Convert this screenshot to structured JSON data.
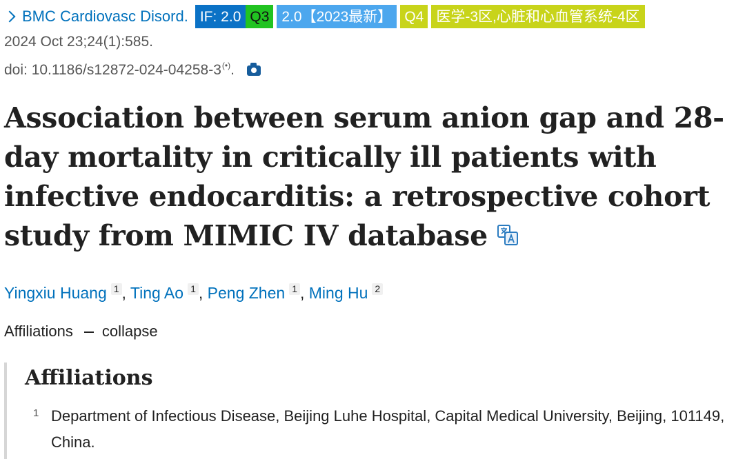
{
  "citation": {
    "journal": "BMC Cardiovasc Disord.",
    "badges": {
      "impact_factor": "IF: 2.0",
      "jcr_quartile": "Q3",
      "cas_if": "2.0【2023最新】",
      "cas_quartile": "Q4",
      "cas_zone": "医学-3区,心脏和心血管系统-4区"
    },
    "date_volume": "2024 Oct 23;24(1):585.",
    "doi": "doi: 10.1186/s12872-024-04258-3",
    "doi_suffix": "(•)",
    "doi_period": "."
  },
  "title": "Association between serum anion gap and 28-day mortality in critically ill patients with infective endocarditis: a retrospective cohort study from MIMIC IV database",
  "authors": [
    {
      "name": "Yingxiu Huang",
      "aff": "1"
    },
    {
      "name": "Ting Ao",
      "aff": "1"
    },
    {
      "name": "Peng Zhen",
      "aff": "1"
    },
    {
      "name": "Ming Hu",
      "aff": "2"
    }
  ],
  "separator": ",",
  "affiliations_toggle": {
    "label": "Affiliations",
    "action": "collapse"
  },
  "affiliations": {
    "heading": "Affiliations",
    "items": [
      {
        "num": "1",
        "text": "Department of Infectious Disease, Beijing Luhe Hospital, Capital Medical University, Beijing, 101149, China."
      }
    ]
  },
  "colors": {
    "link": "#0071bc",
    "if_badge": "#0b72c6",
    "q3_badge": "#21c321",
    "cas_badge": "#4ca7ee",
    "q4_badge": "#c8d41a"
  },
  "icons": {
    "journal": "chevron-right-icon",
    "doi_suffix": "broadcast-icon",
    "camera": "camera-icon",
    "translate": "translate-icon"
  }
}
